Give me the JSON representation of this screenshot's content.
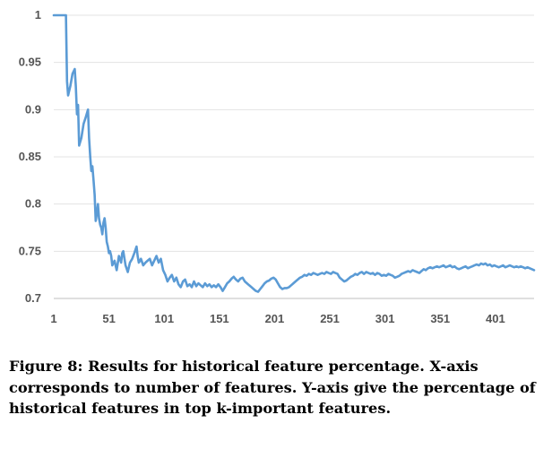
{
  "chart_data": {
    "type": "line",
    "title": "",
    "xlabel": "",
    "ylabel": "",
    "xlim": [
      1,
      436
    ],
    "ylim": [
      0.7,
      1.0
    ],
    "x_ticks": [
      "1",
      "51",
      "101",
      "151",
      "201",
      "251",
      "301",
      "351",
      "401"
    ],
    "y_ticks": [
      "0.7",
      "0.75",
      "0.8",
      "0.85",
      "0.9",
      "0.95",
      "1"
    ],
    "grid": "horizontal",
    "line_color": "#5b9bd5",
    "series": [
      {
        "name": "",
        "points": [
          [
            1,
            1.0
          ],
          [
            12,
            1.0
          ],
          [
            13,
            0.93
          ],
          [
            14,
            0.915
          ],
          [
            16,
            0.925
          ],
          [
            18,
            0.938
          ],
          [
            20,
            0.943
          ],
          [
            21,
            0.925
          ],
          [
            22,
            0.895
          ],
          [
            23,
            0.905
          ],
          [
            24,
            0.862
          ],
          [
            26,
            0.87
          ],
          [
            28,
            0.885
          ],
          [
            30,
            0.892
          ],
          [
            32,
            0.9
          ],
          [
            33,
            0.87
          ],
          [
            34,
            0.85
          ],
          [
            35,
            0.835
          ],
          [
            36,
            0.84
          ],
          [
            37,
            0.825
          ],
          [
            38,
            0.81
          ],
          [
            39,
            0.782
          ],
          [
            40,
            0.79
          ],
          [
            41,
            0.8
          ],
          [
            42,
            0.785
          ],
          [
            43,
            0.778
          ],
          [
            44,
            0.775
          ],
          [
            45,
            0.768
          ],
          [
            46,
            0.78
          ],
          [
            47,
            0.785
          ],
          [
            48,
            0.775
          ],
          [
            49,
            0.76
          ],
          [
            50,
            0.755
          ],
          [
            51,
            0.748
          ],
          [
            52,
            0.75
          ],
          [
            53,
            0.745
          ],
          [
            54,
            0.735
          ],
          [
            56,
            0.74
          ],
          [
            58,
            0.73
          ],
          [
            60,
            0.745
          ],
          [
            62,
            0.738
          ],
          [
            63,
            0.748
          ],
          [
            64,
            0.75
          ],
          [
            66,
            0.735
          ],
          [
            68,
            0.728
          ],
          [
            70,
            0.738
          ],
          [
            72,
            0.742
          ],
          [
            74,
            0.748
          ],
          [
            76,
            0.755
          ],
          [
            77,
            0.745
          ],
          [
            78,
            0.738
          ],
          [
            80,
            0.742
          ],
          [
            82,
            0.735
          ],
          [
            84,
            0.738
          ],
          [
            86,
            0.74
          ],
          [
            88,
            0.742
          ],
          [
            90,
            0.735
          ],
          [
            92,
            0.74
          ],
          [
            94,
            0.745
          ],
          [
            96,
            0.738
          ],
          [
            98,
            0.742
          ],
          [
            100,
            0.73
          ],
          [
            102,
            0.725
          ],
          [
            104,
            0.718
          ],
          [
            106,
            0.722
          ],
          [
            108,
            0.725
          ],
          [
            110,
            0.718
          ],
          [
            112,
            0.722
          ],
          [
            114,
            0.715
          ],
          [
            116,
            0.712
          ],
          [
            118,
            0.718
          ],
          [
            120,
            0.72
          ],
          [
            122,
            0.713
          ],
          [
            124,
            0.715
          ],
          [
            126,
            0.712
          ],
          [
            128,
            0.718
          ],
          [
            130,
            0.713
          ],
          [
            132,
            0.716
          ],
          [
            134,
            0.714
          ],
          [
            136,
            0.712
          ],
          [
            138,
            0.716
          ],
          [
            140,
            0.713
          ],
          [
            142,
            0.715
          ],
          [
            144,
            0.712
          ],
          [
            146,
            0.714
          ],
          [
            148,
            0.712
          ],
          [
            150,
            0.715
          ],
          [
            152,
            0.712
          ],
          [
            154,
            0.708
          ],
          [
            156,
            0.712
          ],
          [
            158,
            0.716
          ],
          [
            160,
            0.718
          ],
          [
            162,
            0.721
          ],
          [
            164,
            0.723
          ],
          [
            166,
            0.72
          ],
          [
            168,
            0.718
          ],
          [
            170,
            0.721
          ],
          [
            172,
            0.722
          ],
          [
            174,
            0.718
          ],
          [
            176,
            0.716
          ],
          [
            178,
            0.714
          ],
          [
            180,
            0.712
          ],
          [
            182,
            0.71
          ],
          [
            184,
            0.708
          ],
          [
            186,
            0.707
          ],
          [
            188,
            0.71
          ],
          [
            190,
            0.713
          ],
          [
            192,
            0.716
          ],
          [
            194,
            0.718
          ],
          [
            196,
            0.719
          ],
          [
            198,
            0.721
          ],
          [
            200,
            0.722
          ],
          [
            202,
            0.72
          ],
          [
            204,
            0.716
          ],
          [
            206,
            0.712
          ],
          [
            208,
            0.71
          ],
          [
            210,
            0.711
          ],
          [
            212,
            0.711
          ],
          [
            214,
            0.712
          ],
          [
            216,
            0.714
          ],
          [
            218,
            0.716
          ],
          [
            220,
            0.718
          ],
          [
            222,
            0.72
          ],
          [
            224,
            0.722
          ],
          [
            226,
            0.723
          ],
          [
            228,
            0.725
          ],
          [
            230,
            0.724
          ],
          [
            232,
            0.726
          ],
          [
            234,
            0.725
          ],
          [
            236,
            0.727
          ],
          [
            238,
            0.726
          ],
          [
            240,
            0.725
          ],
          [
            242,
            0.726
          ],
          [
            244,
            0.727
          ],
          [
            246,
            0.726
          ],
          [
            248,
            0.728
          ],
          [
            250,
            0.727
          ],
          [
            252,
            0.726
          ],
          [
            254,
            0.728
          ],
          [
            256,
            0.727
          ],
          [
            258,
            0.726
          ],
          [
            260,
            0.722
          ],
          [
            262,
            0.72
          ],
          [
            264,
            0.718
          ],
          [
            266,
            0.719
          ],
          [
            268,
            0.721
          ],
          [
            270,
            0.723
          ],
          [
            272,
            0.724
          ],
          [
            274,
            0.726
          ],
          [
            276,
            0.725
          ],
          [
            278,
            0.727
          ],
          [
            280,
            0.728
          ],
          [
            282,
            0.726
          ],
          [
            284,
            0.728
          ],
          [
            286,
            0.727
          ],
          [
            288,
            0.726
          ],
          [
            290,
            0.727
          ],
          [
            292,
            0.725
          ],
          [
            294,
            0.727
          ],
          [
            296,
            0.726
          ],
          [
            298,
            0.724
          ],
          [
            300,
            0.725
          ],
          [
            302,
            0.724
          ],
          [
            304,
            0.726
          ],
          [
            306,
            0.725
          ],
          [
            308,
            0.724
          ],
          [
            310,
            0.722
          ],
          [
            312,
            0.723
          ],
          [
            314,
            0.724
          ],
          [
            316,
            0.726
          ],
          [
            318,
            0.727
          ],
          [
            320,
            0.728
          ],
          [
            322,
            0.729
          ],
          [
            324,
            0.728
          ],
          [
            326,
            0.73
          ],
          [
            328,
            0.729
          ],
          [
            330,
            0.728
          ],
          [
            332,
            0.727
          ],
          [
            334,
            0.729
          ],
          [
            336,
            0.731
          ],
          [
            338,
            0.73
          ],
          [
            340,
            0.732
          ],
          [
            342,
            0.733
          ],
          [
            344,
            0.732
          ],
          [
            346,
            0.733
          ],
          [
            348,
            0.734
          ],
          [
            350,
            0.733
          ],
          [
            352,
            0.734
          ],
          [
            354,
            0.735
          ],
          [
            356,
            0.733
          ],
          [
            358,
            0.734
          ],
          [
            360,
            0.735
          ],
          [
            362,
            0.733
          ],
          [
            364,
            0.734
          ],
          [
            366,
            0.732
          ],
          [
            368,
            0.731
          ],
          [
            370,
            0.732
          ],
          [
            372,
            0.733
          ],
          [
            374,
            0.734
          ],
          [
            376,
            0.732
          ],
          [
            378,
            0.733
          ],
          [
            380,
            0.734
          ],
          [
            382,
            0.735
          ],
          [
            384,
            0.736
          ],
          [
            386,
            0.735
          ],
          [
            388,
            0.737
          ],
          [
            390,
            0.736
          ],
          [
            392,
            0.737
          ],
          [
            394,
            0.735
          ],
          [
            396,
            0.736
          ],
          [
            398,
            0.734
          ],
          [
            400,
            0.735
          ],
          [
            402,
            0.734
          ],
          [
            404,
            0.733
          ],
          [
            406,
            0.734
          ],
          [
            408,
            0.735
          ],
          [
            410,
            0.733
          ],
          [
            412,
            0.734
          ],
          [
            414,
            0.735
          ],
          [
            416,
            0.734
          ],
          [
            418,
            0.733
          ],
          [
            420,
            0.734
          ],
          [
            422,
            0.733
          ],
          [
            424,
            0.734
          ],
          [
            426,
            0.733
          ],
          [
            428,
            0.732
          ],
          [
            430,
            0.733
          ],
          [
            432,
            0.732
          ],
          [
            434,
            0.731
          ],
          [
            436,
            0.73
          ]
        ]
      }
    ]
  },
  "caption": {
    "text": "Figure 8: Results for historical feature percentage. X-axis corresponds to number of features. Y-axis give the percentage of historical features in top k-important features."
  }
}
